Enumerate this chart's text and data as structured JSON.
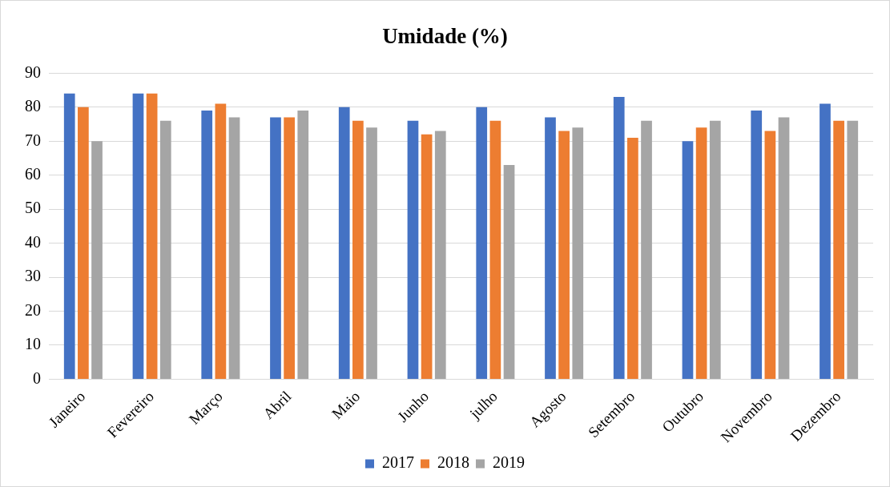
{
  "chart_data": {
    "type": "bar",
    "title": "Umidade (%)",
    "categories": [
      "Janeiro",
      "Fevereiro",
      "Março",
      "Abril",
      "Maio",
      "Junho",
      "julho",
      "Agosto",
      "Setembro",
      "Outubro",
      "Novembro",
      "Dezembro"
    ],
    "series": [
      {
        "name": "2017",
        "color": "#4472c4",
        "values": [
          84,
          84,
          79,
          77,
          80,
          76,
          80,
          77,
          83,
          70,
          79,
          81
        ]
      },
      {
        "name": "2018",
        "color": "#ed7d31",
        "values": [
          80,
          84,
          81,
          77,
          76,
          72,
          76,
          73,
          71,
          74,
          73,
          76
        ]
      },
      {
        "name": "2019",
        "color": "#a5a5a5",
        "values": [
          70,
          76,
          77,
          79,
          74,
          73,
          63,
          74,
          76,
          76,
          77,
          76
        ]
      }
    ],
    "ylim": [
      0,
      90
    ],
    "yticks": [
      0,
      10,
      20,
      30,
      40,
      50,
      60,
      70,
      80,
      90
    ],
    "grid": "y",
    "legend": "bottom"
  }
}
